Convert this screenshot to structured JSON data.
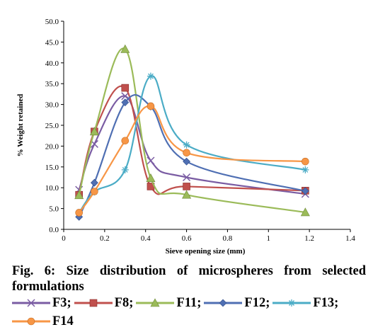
{
  "chart_data": {
    "type": "line",
    "xlabel": "Sieve opening size (mm)",
    "ylabel": "% Weight retained",
    "xlim": [
      0,
      1.4
    ],
    "ylim": [
      0,
      50
    ],
    "x_ticks": [
      "0",
      "0.2",
      "0.4",
      "0.6",
      "0.8",
      "1",
      "1.2",
      "1.4"
    ],
    "y_ticks": [
      "0.0",
      "5.0",
      "10.0",
      "15.0",
      "20.0",
      "25.0",
      "30.0",
      "35.0",
      "40.0",
      "45.0",
      "50.0"
    ],
    "grid": false,
    "legend_position": "bottom",
    "series": [
      {
        "name": "F3",
        "color": "#7a5ca3",
        "marker": "x",
        "x": [
          0.075,
          0.15,
          0.3,
          0.425,
          0.6,
          1.18
        ],
        "y": [
          9.5,
          20.5,
          32,
          16.5,
          12.5,
          8.5
        ]
      },
      {
        "name": "F8",
        "color": "#c0504d",
        "marker": "square",
        "x": [
          0.075,
          0.15,
          0.3,
          0.425,
          0.6,
          1.18
        ],
        "y": [
          8.3,
          23.5,
          34,
          10.3,
          10.3,
          9.3
        ]
      },
      {
        "name": "F11",
        "color": "#9bbb59",
        "marker": "triangle",
        "x": [
          0.075,
          0.15,
          0.3,
          0.425,
          0.6,
          1.18
        ],
        "y": [
          8.2,
          23.5,
          43.3,
          12.3,
          8.3,
          4.1
        ]
      },
      {
        "name": "F12",
        "color": "#4f6fb3",
        "marker": "diamond",
        "x": [
          0.075,
          0.15,
          0.3,
          0.425,
          0.6,
          1.18
        ],
        "y": [
          3,
          11.2,
          30.5,
          29.5,
          16.3,
          9.2
        ]
      },
      {
        "name": "F13",
        "color": "#4bacc6",
        "marker": "star",
        "x": [
          0.075,
          0.15,
          0.3,
          0.425,
          0.6,
          1.18
        ],
        "y": [
          4,
          9,
          14.3,
          36.8,
          20.3,
          14.3
        ]
      },
      {
        "name": "F14",
        "color": "#f79646",
        "marker": "circle",
        "x": [
          0.075,
          0.15,
          0.3,
          0.425,
          0.6,
          1.18
        ],
        "y": [
          4,
          9.1,
          21.3,
          29.6,
          18.4,
          16.3
        ]
      }
    ]
  },
  "caption": {
    "text": "Fig. 6: Size distribution of microspheres from selected formulations"
  },
  "legend": {
    "items": [
      "F3;",
      "F8;",
      "F11;",
      "F12;",
      "F13;",
      "F14"
    ]
  }
}
